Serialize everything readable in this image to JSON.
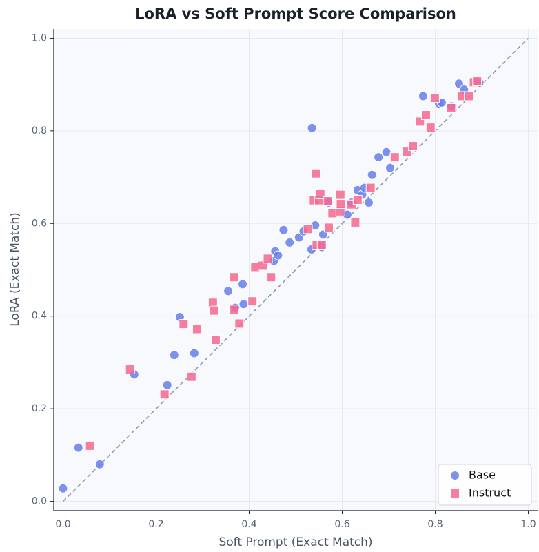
{
  "chart_data": {
    "type": "scatter",
    "title": "LoRA vs Soft Prompt Score Comparison",
    "x_label": "Soft Prompt (Exact Match)",
    "y_label": "LoRA (Exact Match)",
    "xlim": [
      -0.02,
      1.02
    ],
    "ylim": [
      -0.02,
      1.02
    ],
    "xticks": [
      {
        "value": 0,
        "label": "0.0"
      },
      0.2,
      0.4,
      0.6,
      0.8,
      {
        "value": 1,
        "label": "1.0"
      }
    ],
    "yticks": [
      {
        "value": 0,
        "label": "0.0"
      },
      0.2,
      0.4,
      0.6,
      0.8,
      {
        "value": 1,
        "label": "1.0"
      }
    ],
    "grid": true,
    "legend": "lower right",
    "reference_line": {
      "x": [
        0,
        1
      ],
      "y": [
        0,
        1
      ]
    },
    "series": [
      {
        "name": "Base",
        "color": "#667eea",
        "marker": "circle",
        "x": [
          0.0,
          0.033,
          0.079,
          0.153,
          0.251,
          0.239,
          0.224,
          0.282,
          0.355,
          0.386,
          0.388,
          0.37,
          0.474,
          0.456,
          0.453,
          0.462,
          0.487,
          0.507,
          0.517,
          0.534,
          0.542,
          0.535,
          0.559,
          0.556,
          0.571,
          0.611,
          0.62,
          0.633,
          0.643,
          0.648,
          0.657,
          0.664,
          0.678,
          0.695,
          0.703,
          0.774,
          0.808,
          0.814,
          0.835,
          0.851,
          0.862,
          0.895
        ],
        "values": [
          0.028,
          0.116,
          0.08,
          0.274,
          0.398,
          0.316,
          0.251,
          0.32,
          0.454,
          0.469,
          0.426,
          0.418,
          0.586,
          0.54,
          0.519,
          0.531,
          0.559,
          0.57,
          0.583,
          0.544,
          0.596,
          0.806,
          0.576,
          0.549,
          0.645,
          0.619,
          0.645,
          0.672,
          0.662,
          0.677,
          0.645,
          0.705,
          0.743,
          0.754,
          0.72,
          0.875,
          0.859,
          0.861,
          0.853,
          0.902,
          0.889,
          0.904
        ]
      },
      {
        "name": "Instruct",
        "color": "#f5678f",
        "marker": "square",
        "x": [
          0.058,
          0.144,
          0.218,
          0.259,
          0.276,
          0.288,
          0.322,
          0.325,
          0.328,
          0.367,
          0.367,
          0.379,
          0.407,
          0.413,
          0.429,
          0.44,
          0.447,
          0.526,
          0.539,
          0.543,
          0.545,
          0.55,
          0.553,
          0.556,
          0.569,
          0.571,
          0.579,
          0.596,
          0.596,
          0.597,
          0.62,
          0.628,
          0.633,
          0.661,
          0.713,
          0.74,
          0.752,
          0.767,
          0.78,
          0.79,
          0.799,
          0.834,
          0.857,
          0.872,
          0.883,
          0.89
        ],
        "values": [
          0.12,
          0.285,
          0.231,
          0.383,
          0.269,
          0.372,
          0.429,
          0.412,
          0.349,
          0.484,
          0.414,
          0.384,
          0.432,
          0.506,
          0.509,
          0.524,
          0.484,
          0.588,
          0.65,
          0.708,
          0.553,
          0.65,
          0.663,
          0.553,
          0.648,
          0.591,
          0.622,
          0.662,
          0.626,
          0.642,
          0.641,
          0.602,
          0.651,
          0.677,
          0.743,
          0.755,
          0.767,
          0.82,
          0.834,
          0.807,
          0.871,
          0.849,
          0.875,
          0.875,
          0.905,
          0.907
        ]
      }
    ]
  }
}
